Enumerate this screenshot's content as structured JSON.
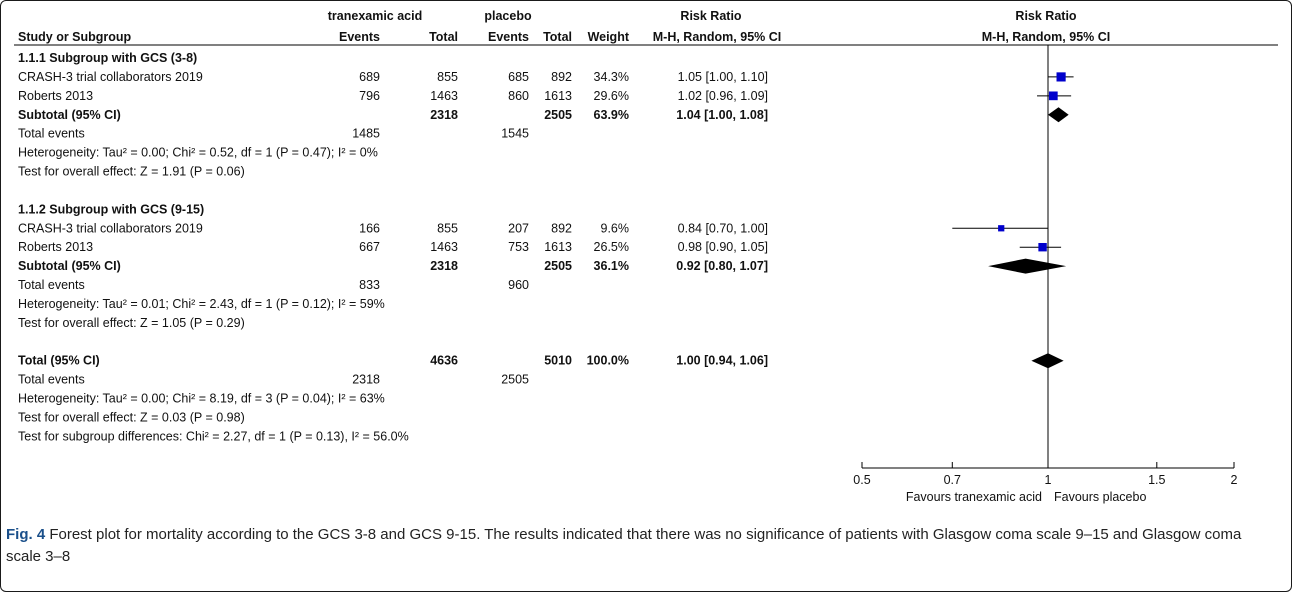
{
  "columns": {
    "group1": "tranexamic acid",
    "group2": "placebo",
    "rr_title": "Risk Ratio",
    "study": "Study or Subgroup",
    "events": "Events",
    "total": "Total",
    "weight": "Weight",
    "ci_method": "M-H, Random, 95% CI",
    "plot_title": "Risk Ratio",
    "plot_subtitle": "M-H, Random, 95% CI"
  },
  "rows": [
    {
      "type": "heading",
      "label": "1.1.1 Subgroup with GCS (3-8)"
    },
    {
      "type": "study",
      "label": "CRASH-3 trial collaborators 2019",
      "e1": "689",
      "n1": "855",
      "e2": "685",
      "n2": "892",
      "weight": "34.3%",
      "ci": "1.05 [1.00, 1.10]"
    },
    {
      "type": "study",
      "label": "Roberts 2013",
      "e1": "796",
      "n1": "1463",
      "e2": "860",
      "n2": "1613",
      "weight": "29.6%",
      "ci": "1.02 [0.96, 1.09]"
    },
    {
      "type": "subtotal",
      "label": "Subtotal (95% CI)",
      "n1": "2318",
      "n2": "2505",
      "weight": "63.9%",
      "ci": "1.04 [1.00, 1.08]"
    },
    {
      "type": "events",
      "label": "Total events",
      "e1": "1485",
      "e2": "1545"
    },
    {
      "type": "note",
      "label": "Heterogeneity: Tau² = 0.00; Chi² = 0.52, df = 1 (P = 0.47); I² = 0%"
    },
    {
      "type": "note",
      "label": "Test for overall effect: Z = 1.91 (P = 0.06)"
    },
    {
      "type": "blank"
    },
    {
      "type": "heading",
      "label": "1.1.2 Subgroup with GCS (9-15)"
    },
    {
      "type": "study",
      "label": "CRASH-3 trial collaborators 2019",
      "e1": "166",
      "n1": "855",
      "e2": "207",
      "n2": "892",
      "weight": "9.6%",
      "ci": "0.84 [0.70, 1.00]"
    },
    {
      "type": "study",
      "label": "Roberts 2013",
      "e1": "667",
      "n1": "1463",
      "e2": "753",
      "n2": "1613",
      "weight": "26.5%",
      "ci": "0.98 [0.90, 1.05]"
    },
    {
      "type": "subtotal",
      "label": "Subtotal (95% CI)",
      "n1": "2318",
      "n2": "2505",
      "weight": "36.1%",
      "ci": "0.92 [0.80, 1.07]"
    },
    {
      "type": "events",
      "label": "Total events",
      "e1": "833",
      "e2": "960"
    },
    {
      "type": "note",
      "label": "Heterogeneity: Tau² = 0.01; Chi² = 2.43, df = 1 (P = 0.12); I² = 59%"
    },
    {
      "type": "note",
      "label": "Test for overall effect: Z = 1.05 (P = 0.29)"
    },
    {
      "type": "blank"
    },
    {
      "type": "subtotal",
      "label": "Total (95% CI)",
      "n1": "4636",
      "n2": "5010",
      "weight": "100.0%",
      "ci": "1.00 [0.94, 1.06]"
    },
    {
      "type": "events",
      "label": "Total events",
      "e1": "2318",
      "e2": "2505"
    },
    {
      "type": "note",
      "label": "Heterogeneity: Tau² = 0.00; Chi² = 8.19, df = 3 (P = 0.04); I² = 63%"
    },
    {
      "type": "note",
      "label": "Test for overall effect: Z = 0.03 (P = 0.98)"
    },
    {
      "type": "note",
      "label": "Test for subgroup differences: Chi² = 2.27, df = 1 (P = 0.13), I² = 56.0%"
    }
  ],
  "chart_data": {
    "type": "forest",
    "scale": "log",
    "xlim": [
      0.5,
      2
    ],
    "null_value": 1,
    "ticks": [
      0.5,
      0.7,
      1,
      1.5,
      2
    ],
    "tick_labels": [
      "0.5",
      "0.7",
      "1",
      "1.5",
      "2"
    ],
    "favours_left": "Favours tranexamic acid",
    "favours_right": "Favours placebo",
    "point_color": "#0000cc",
    "studies": [
      {
        "label": "CRASH-3 trial collaborators 2019",
        "subgroup": "1.1.1 Subgroup with GCS (3-8)",
        "rr": 1.05,
        "lo": 1.0,
        "hi": 1.1,
        "weight": 34.3
      },
      {
        "label": "Roberts 2013",
        "subgroup": "1.1.1 Subgroup with GCS (3-8)",
        "rr": 1.02,
        "lo": 0.96,
        "hi": 1.09,
        "weight": 29.6
      },
      {
        "label": "CRASH-3 trial collaborators 2019",
        "subgroup": "1.1.2 Subgroup with GCS (9-15)",
        "rr": 0.84,
        "lo": 0.7,
        "hi": 1.0,
        "weight": 9.6
      },
      {
        "label": "Roberts 2013",
        "subgroup": "1.1.2 Subgroup with GCS (9-15)",
        "rr": 0.98,
        "lo": 0.9,
        "hi": 1.05,
        "weight": 26.5
      }
    ],
    "pooled": [
      {
        "label": "Subtotal (95% CI)",
        "subgroup": "1.1.1 Subgroup with GCS (3-8)",
        "rr": 1.04,
        "lo": 1.0,
        "hi": 1.08
      },
      {
        "label": "Subtotal (95% CI)",
        "subgroup": "1.1.2 Subgroup with GCS (9-15)",
        "rr": 0.92,
        "lo": 0.8,
        "hi": 1.07
      },
      {
        "label": "Total (95% CI)",
        "subgroup": "overall",
        "rr": 1.0,
        "lo": 0.94,
        "hi": 1.06
      }
    ]
  },
  "caption": {
    "label": "Fig. 4",
    "text": " Forest plot for mortality according to the GCS 3-8 and GCS 9-15. The results indicated that there was no significance of patients with Glasgow coma scale 9–15 and Glasgow coma scale 3–8"
  }
}
